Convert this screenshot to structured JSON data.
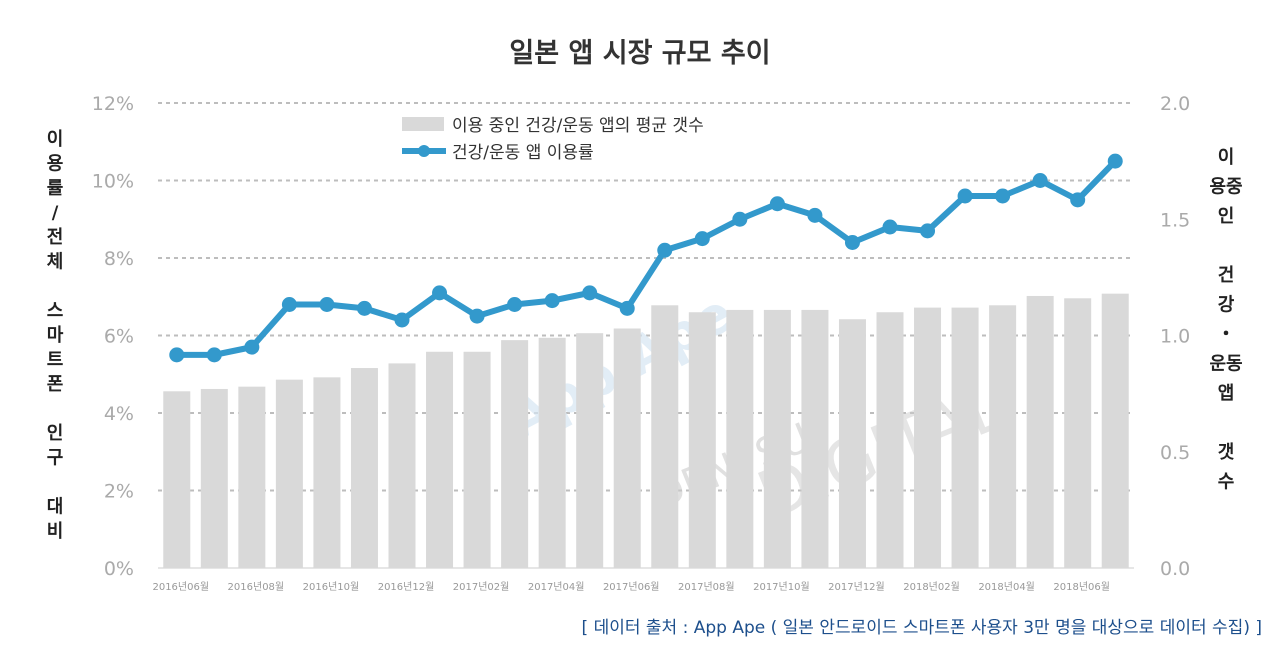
{
  "chart_data": [
    {
      "type": "bar",
      "name": "이용 중인 건강/운동 앱의 평균 갯수",
      "axis": "right",
      "values": [
        0.76,
        0.77,
        0.78,
        0.81,
        0.82,
        0.86,
        0.88,
        0.93,
        0.93,
        0.98,
        0.99,
        1.01,
        1.03,
        1.13,
        1.1,
        1.11,
        1.11,
        1.11,
        1.07,
        1.1,
        1.12,
        1.12,
        1.13,
        1.17,
        1.16,
        1.18
      ]
    },
    {
      "type": "line",
      "name": "건강/운동 앱 이용률",
      "axis": "left",
      "values": [
        5.5,
        5.5,
        5.7,
        6.8,
        6.8,
        6.7,
        6.4,
        7.1,
        6.5,
        6.8,
        6.9,
        7.1,
        6.7,
        8.2,
        8.5,
        9.0,
        9.4,
        9.1,
        8.4,
        8.8,
        8.7,
        9.6,
        9.6,
        10.0,
        9.5,
        10.5
      ]
    }
  ],
  "chart_meta": {
    "title": "일본 앱 시장 규모 추이",
    "categories": [
      "2016년06월",
      "2016년07월",
      "2016년08월",
      "2016년09월",
      "2016년10월",
      "2016년11월",
      "2016년12월",
      "2017년01월",
      "2017년02월",
      "2017년03월",
      "2017년04월",
      "2017년05월",
      "2017년06월",
      "2017년07월",
      "2017년08월",
      "2017년09월",
      "2017년10월",
      "2017년11월",
      "2017년12월",
      "2018년01월",
      "2018년02월",
      "2018년03월",
      "2018년04월",
      "2018년05월",
      "2018년06월",
      "2018년07월"
    ],
    "x_tick_labels": [
      "2016년06월",
      "2016년08월",
      "2016년10월",
      "2016년12월",
      "2017년02월",
      "2017년04월",
      "2017년06월",
      "2017년08월",
      "2017년10월",
      "2017년12월",
      "2018년02월",
      "2018년04월",
      "2018년06월"
    ],
    "left_axis": {
      "label": "이용률/전체 스마트폰 인구 대비",
      "label_lines": [
        "이",
        "용",
        "률",
        "/",
        "전",
        "체",
        "",
        "스",
        "마",
        "트",
        "폰",
        "",
        "인",
        "구",
        "",
        "대",
        "비"
      ],
      "ylim": [
        0,
        12
      ],
      "ticks": [
        "0%",
        "2%",
        "4%",
        "6%",
        "8%",
        "10%",
        "12%"
      ]
    },
    "right_axis": {
      "label": "이용중인 건강・운동앱 갯수",
      "label_lines": [
        "이",
        "용중",
        "인",
        "",
        "건",
        "강",
        "・",
        "운동",
        "앱",
        "",
        "갯",
        "수"
      ],
      "ylim": [
        0,
        2
      ],
      "ticks": [
        "0.0",
        "0.5",
        "1.0",
        "1.5",
        "2.0"
      ]
    },
    "gridlines": true,
    "legend_position": "top-left",
    "source": "[ 데이터 출처 : App Ape ( 일본 안드로이드 스마트폰 사용자 3만 명을 대상으로 데이터 수집) ]",
    "watermarks": [
      "App Ape",
      "DENTSU",
      "DIGITAL"
    ],
    "colors": {
      "bar": "#d9d9d9",
      "line": "#3399cc",
      "grid": "#bdbdbd",
      "source": "#1d4f8c"
    }
  }
}
